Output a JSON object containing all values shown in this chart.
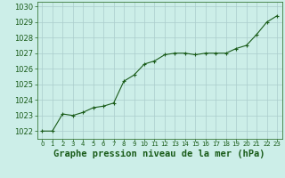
{
  "x": [
    0,
    1,
    2,
    3,
    4,
    5,
    6,
    7,
    8,
    9,
    10,
    11,
    12,
    13,
    14,
    15,
    16,
    17,
    18,
    19,
    20,
    21,
    22,
    23
  ],
  "y": [
    1022.0,
    1022.0,
    1023.1,
    1023.0,
    1023.2,
    1023.5,
    1023.6,
    1023.8,
    1025.2,
    1025.6,
    1026.3,
    1026.5,
    1026.9,
    1027.0,
    1027.0,
    1026.9,
    1027.0,
    1027.0,
    1027.0,
    1027.3,
    1027.5,
    1028.2,
    1029.0,
    1029.4
  ],
  "line_color": "#1a5c1a",
  "marker": "+",
  "marker_size": 3.5,
  "marker_color": "#1a5c1a",
  "bg_color": "#cceee8",
  "grid_color": "#aacccc",
  "tick_color": "#1a5c1a",
  "label_color": "#1a5c1a",
  "xlabel": "Graphe pression niveau de la mer (hPa)",
  "xlabel_fontsize": 7.5,
  "ylim_min": 1021.5,
  "ylim_max": 1030.3,
  "ytick_start": 1022,
  "ytick_end": 1030,
  "ytick_step": 1,
  "xtick_labels": [
    "0",
    "1",
    "2",
    "3",
    "4",
    "5",
    "6",
    "7",
    "8",
    "9",
    "10",
    "11",
    "12",
    "13",
    "14",
    "15",
    "16",
    "17",
    "18",
    "19",
    "20",
    "21",
    "22",
    "23"
  ],
  "linewidth": 0.8,
  "spine_color": "#3a7a3a",
  "ytick_fontsize": 6,
  "xtick_fontsize": 5
}
